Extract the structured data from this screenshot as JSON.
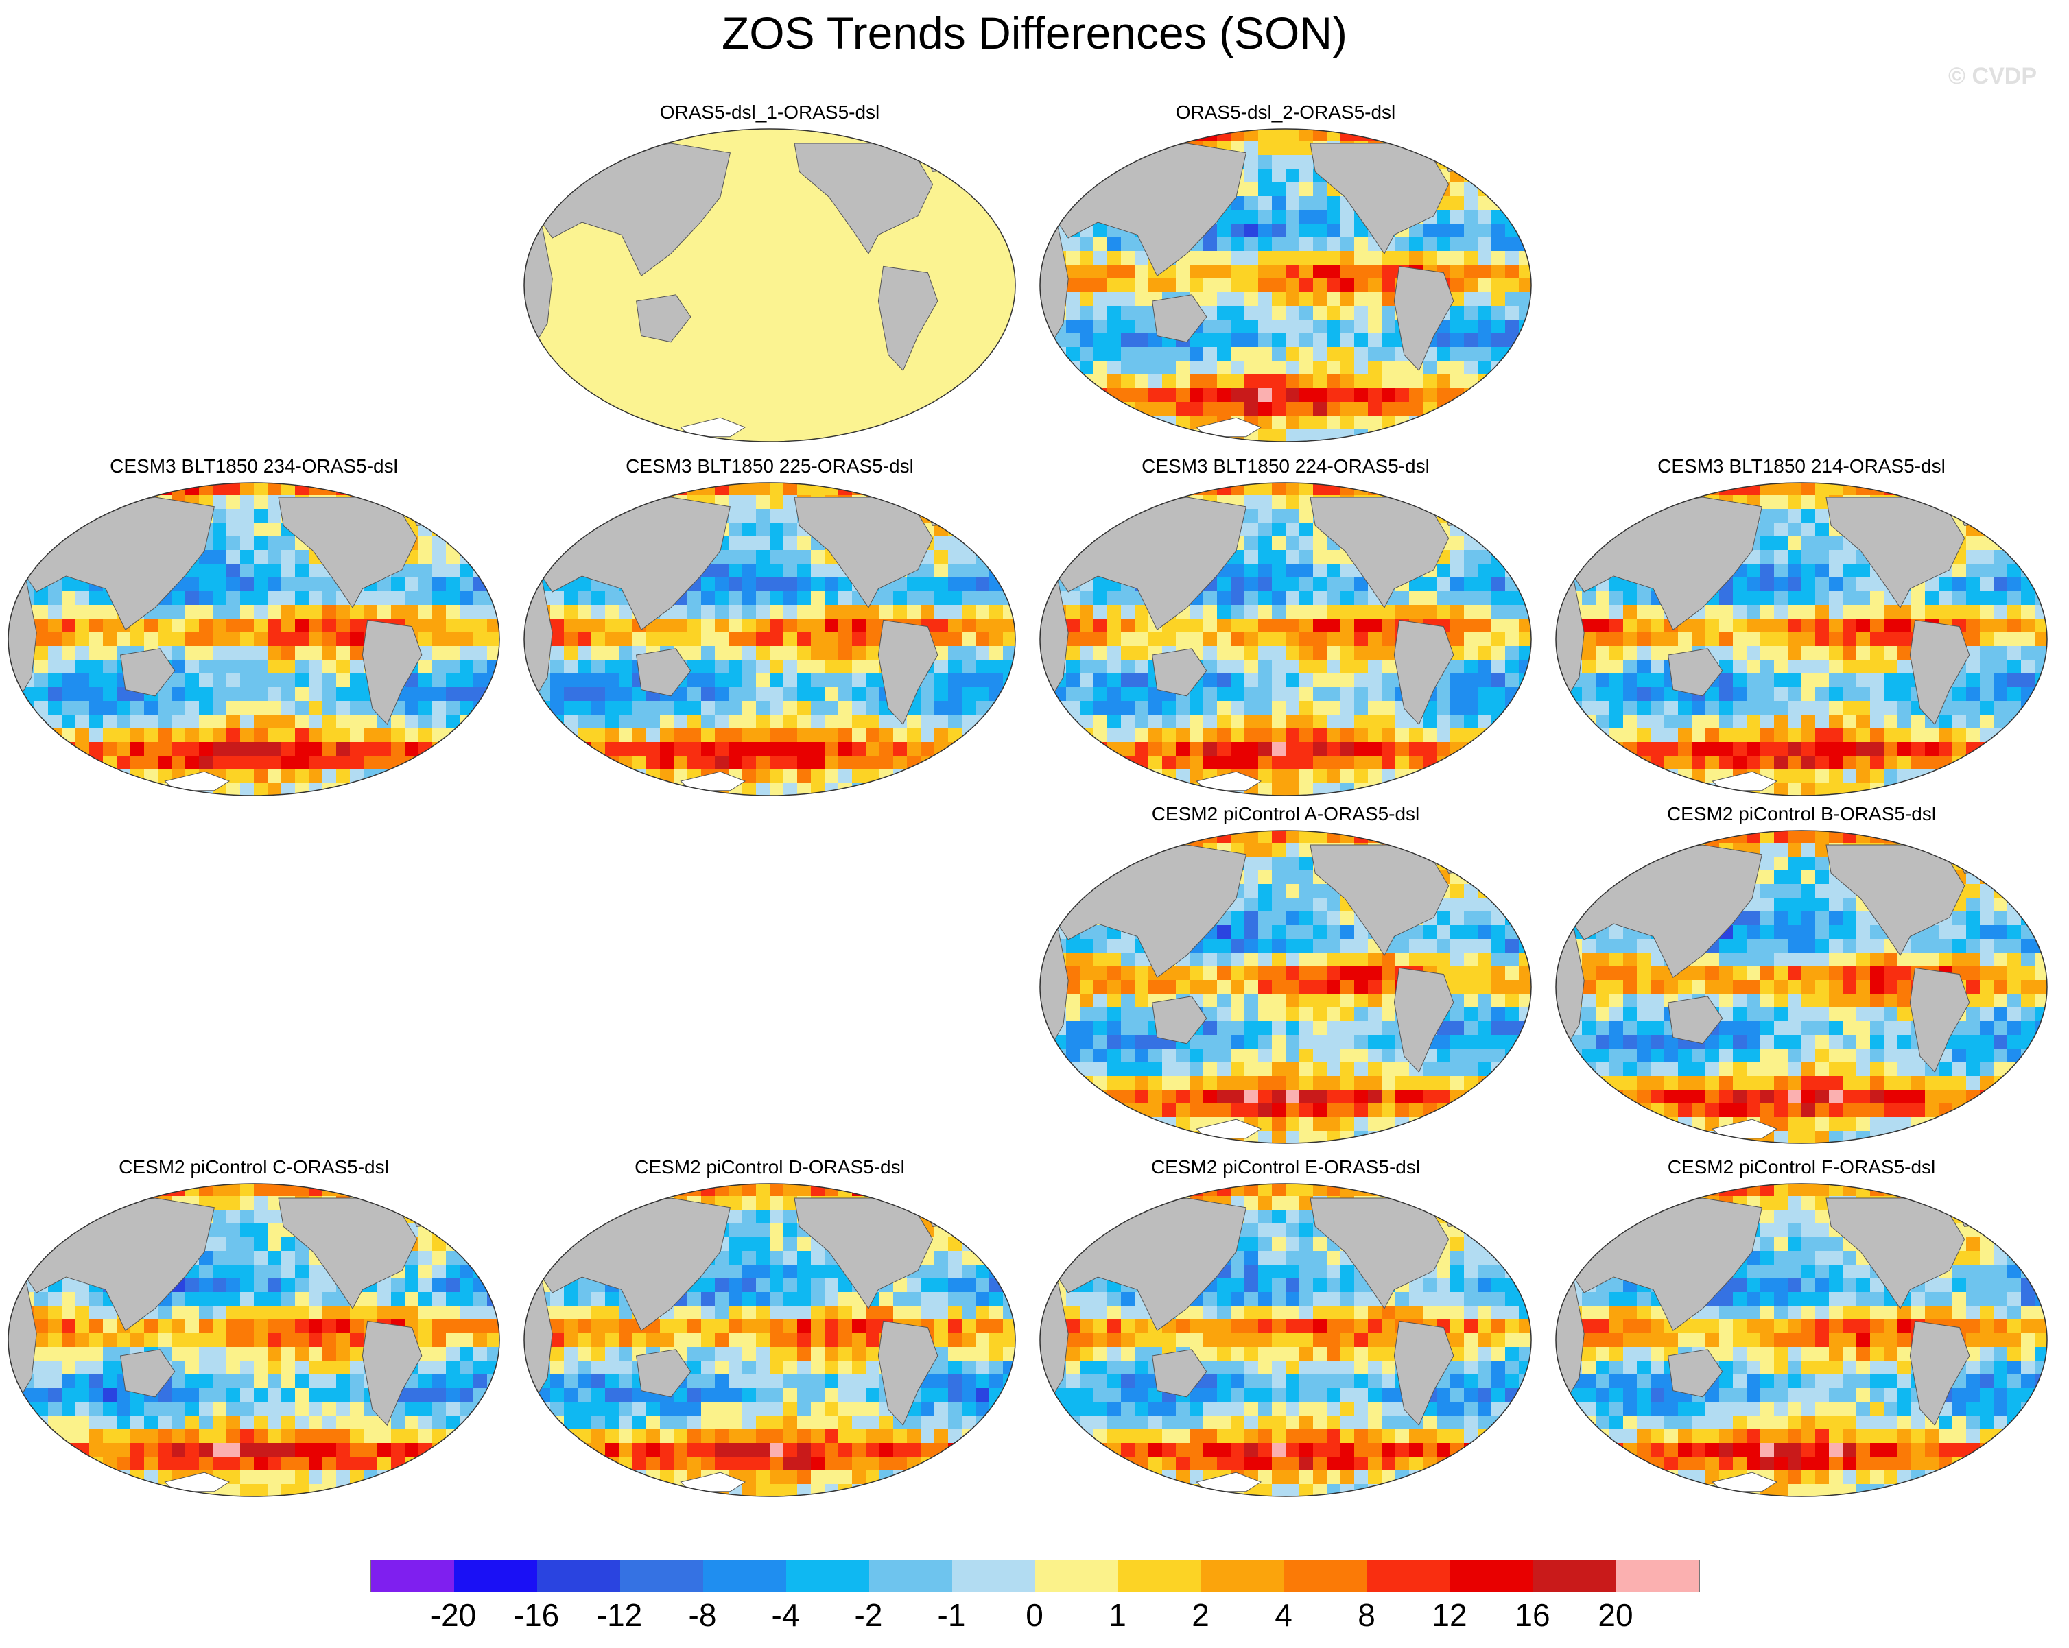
{
  "figure": {
    "title": "ZOS Trends Differences (SON)",
    "watermark": "© CVDP"
  },
  "panels": [
    {
      "id": "p1",
      "label": "ORAS5-dsl_1-ORAS5-dsl",
      "pattern": "uniform-zero"
    },
    {
      "id": "p2",
      "label": "ORAS5-dsl_2-ORAS5-dsl",
      "pattern": "mixed"
    },
    {
      "id": "p3",
      "label": "CESM3 BLT1850 234-ORAS5-dsl",
      "pattern": "mixed"
    },
    {
      "id": "p4",
      "label": "CESM3 BLT1850 225-ORAS5-dsl",
      "pattern": "mixed"
    },
    {
      "id": "p5",
      "label": "CESM3 BLT1850 224-ORAS5-dsl",
      "pattern": "mixed"
    },
    {
      "id": "p6",
      "label": "CESM3 BLT1850 214-ORAS5-dsl",
      "pattern": "mixed"
    },
    {
      "id": "p7",
      "label": "CESM2 piControl A-ORAS5-dsl",
      "pattern": "mixed"
    },
    {
      "id": "p8",
      "label": "CESM2 piControl B-ORAS5-dsl",
      "pattern": "mixed"
    },
    {
      "id": "p9",
      "label": "CESM2 piControl C-ORAS5-dsl",
      "pattern": "mixed"
    },
    {
      "id": "p10",
      "label": "CESM2 piControl D-ORAS5-dsl",
      "pattern": "mixed"
    },
    {
      "id": "p11",
      "label": "CESM2 piControl E-ORAS5-dsl",
      "pattern": "mixed"
    },
    {
      "id": "p12",
      "label": "CESM2 piControl F-ORAS5-dsl",
      "pattern": "mixed"
    }
  ],
  "colorbar": {
    "labels": [
      "-20",
      "-16",
      "-12",
      "-8",
      "-4",
      "-2",
      "-1",
      "0",
      "1",
      "2",
      "4",
      "8",
      "12",
      "16",
      "20"
    ],
    "colors": [
      "#7f1fef",
      "#1a10f5",
      "#2a44e0",
      "#3572e3",
      "#1f8ef0",
      "#0fb8f2",
      "#6ec4ee",
      "#b2dcf2",
      "#fbf28a",
      "#fcd325",
      "#fba40c",
      "#fb7a06",
      "#f92e10",
      "#e80000",
      "#c91a1a",
      "#fbb0b0"
    ]
  },
  "colors": {
    "land": "#bdbdbd",
    "ocean_zero": "#fbf391"
  }
}
